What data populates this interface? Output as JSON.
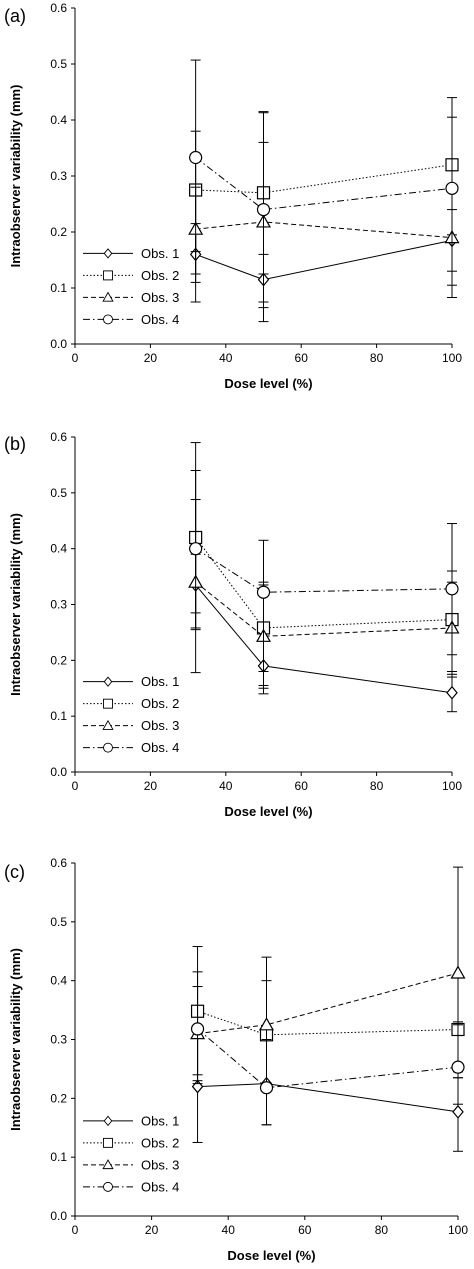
{
  "chart_data": [
    {
      "type": "line",
      "panel_label": "(a)",
      "xlabel": "Dose level (%)",
      "ylabel": "Intraobserver variability (mm)",
      "xlim": [
        0,
        100
      ],
      "ylim": [
        0,
        0.6
      ],
      "xticks": [
        "0",
        "20",
        "40",
        "60",
        "80",
        "100"
      ],
      "yticks": [
        "0.0",
        "0.1",
        "0.2",
        "0.3",
        "0.4",
        "0.5",
        "0.6"
      ],
      "x": [
        32,
        50,
        100
      ],
      "legend_position": "bottom-left",
      "series": [
        {
          "name": "Obs. 1",
          "values": [
            0.16,
            0.115,
            0.185
          ],
          "err_low": [
            0.11,
            0.065,
            0.13
          ],
          "err_high": [
            0.215,
            0.16,
            0.24
          ]
        },
        {
          "name": "Obs. 2",
          "values": [
            0.275,
            0.27,
            0.32
          ],
          "err_low": [
            0.165,
            0.125,
            0.195
          ],
          "err_high": [
            0.38,
            0.415,
            0.44
          ]
        },
        {
          "name": "Obs. 3",
          "values": [
            0.205,
            0.218,
            0.19
          ],
          "err_low": [
            0.125,
            0.075,
            0.105
          ],
          "err_high": [
            0.28,
            0.36,
            0.275
          ]
        },
        {
          "name": "Obs. 4",
          "values": [
            0.333,
            0.24,
            0.278
          ],
          "err_low": [
            0.075,
            0.04,
            0.083
          ],
          "err_high": [
            0.507,
            0.413,
            0.405
          ]
        }
      ]
    },
    {
      "type": "line",
      "panel_label": "(b)",
      "xlabel": "Dose level (%)",
      "ylabel": "Intraobserver variability (mm)",
      "xlim": [
        0,
        100
      ],
      "ylim": [
        0,
        0.6
      ],
      "xticks": [
        "0",
        "20",
        "40",
        "60",
        "80",
        "100"
      ],
      "yticks": [
        "0.0",
        "0.1",
        "0.2",
        "0.3",
        "0.4",
        "0.5",
        "0.6"
      ],
      "x": [
        32,
        50,
        100
      ],
      "legend_position": "bottom-left",
      "series": [
        {
          "name": "Obs. 1",
          "values": [
            0.335,
            0.19,
            0.142
          ],
          "err_low": [
            0.255,
            0.14,
            0.108
          ],
          "err_high": [
            0.39,
            0.24,
            0.175
          ]
        },
        {
          "name": "Obs. 2",
          "values": [
            0.42,
            0.258,
            0.273
          ],
          "err_low": [
            0.285,
            0.18,
            0.17
          ],
          "err_high": [
            0.54,
            0.34,
            0.36
          ]
        },
        {
          "name": "Obs. 3",
          "values": [
            0.34,
            0.243,
            0.258
          ],
          "err_low": [
            0.258,
            0.15,
            0.18
          ],
          "err_high": [
            0.488,
            0.335,
            0.34
          ]
        },
        {
          "name": "Obs. 4",
          "values": [
            0.4,
            0.322,
            0.328
          ],
          "err_low": [
            0.178,
            0.155,
            0.21
          ],
          "err_high": [
            0.59,
            0.415,
            0.445
          ]
        }
      ]
    },
    {
      "type": "line",
      "panel_label": "(c)",
      "xlabel": "Dose level (%)",
      "ylabel": "Intraobserver variability (mm)",
      "xlim": [
        0,
        100
      ],
      "ylim": [
        0,
        0.6
      ],
      "xticks": [
        "0",
        "20",
        "40",
        "60",
        "80",
        "100"
      ],
      "yticks": [
        "0.0",
        "0.1",
        "0.2",
        "0.3",
        "0.4",
        "0.5",
        "0.6"
      ],
      "x": [
        32,
        50,
        100
      ],
      "legend_position": "bottom-left",
      "series": [
        {
          "name": "Obs. 1",
          "values": [
            0.22,
            0.225,
            0.177
          ],
          "err_low": [
            0.125,
            0.155,
            0.11
          ],
          "err_high": [
            0.32,
            0.3,
            0.245
          ]
        },
        {
          "name": "Obs. 2",
          "values": [
            0.348,
            0.308,
            0.317
          ],
          "err_low": [
            0.24,
            0.215,
            0.235
          ],
          "err_high": [
            0.458,
            0.4,
            0.33
          ]
        },
        {
          "name": "Obs. 3",
          "values": [
            0.31,
            0.325,
            0.413
          ],
          "err_low": [
            0.23,
            0.225,
            0.235
          ],
          "err_high": [
            0.415,
            0.44,
            0.593
          ]
        },
        {
          "name": "Obs. 4",
          "values": [
            0.318,
            0.218,
            0.253
          ],
          "err_low": [
            0.225,
            0.155,
            0.19
          ],
          "err_high": [
            0.39,
            0.3,
            0.325
          ]
        }
      ]
    }
  ]
}
